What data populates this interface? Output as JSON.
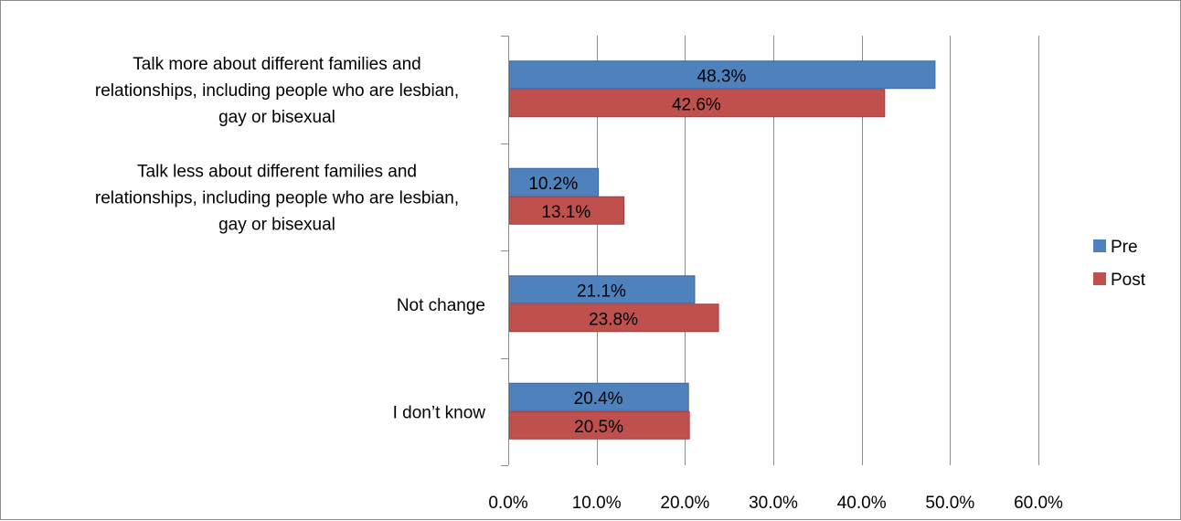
{
  "chart_data": {
    "type": "bar",
    "orientation": "horizontal",
    "categories": [
      "Talk more about different families and relationships, including people who are lesbian, gay or bisexual",
      "Talk less about different families and relationships, including people who are lesbian, gay or bisexual",
      "Not change",
      "I don’t know"
    ],
    "category_lines": [
      [
        "Talk more about different families and",
        "relationships, including people who are lesbian,",
        "gay or bisexual"
      ],
      [
        "Talk less about different families and",
        "relationships, including people who are lesbian,",
        "gay or bisexual"
      ],
      [
        "Not change"
      ],
      [
        "I don’t know"
      ]
    ],
    "series": [
      {
        "name": "Pre",
        "color": "#4f81bd",
        "stroke": "#3a6aa3",
        "values": [
          48.3,
          10.2,
          21.1,
          20.4
        ],
        "labels": [
          "48.3%",
          "10.2%",
          "21.1%",
          "20.4%"
        ]
      },
      {
        "name": "Post",
        "color": "#c0504d",
        "stroke": "#a03e3b",
        "values": [
          42.6,
          13.1,
          23.8,
          20.5
        ],
        "labels": [
          "42.6%",
          "13.1%",
          "23.8%",
          "20.5%"
        ]
      }
    ],
    "xlim": [
      0,
      60
    ],
    "xticks": [
      0,
      10,
      20,
      30,
      40,
      50,
      60
    ],
    "xtick_labels": [
      "0.0%",
      "10.0%",
      "20.0%",
      "30.0%",
      "40.0%",
      "50.0%",
      "60.0%"
    ],
    "grid": true,
    "legend_position": "right"
  }
}
